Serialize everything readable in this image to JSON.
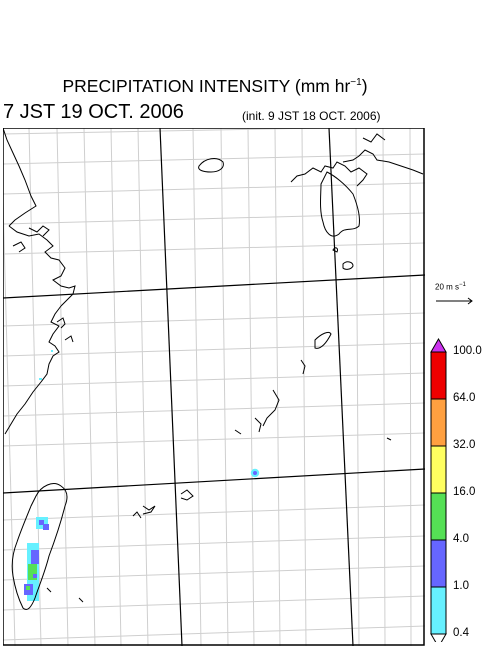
{
  "header": {
    "title": "PRECIPITATION INTENSITY (mm hr",
    "title_sup": "−1",
    "title_end": ")",
    "valid_time": "7 JST 19 OCT. 2006",
    "init_time": "(init. 9 JST 18 OCT. 2006)"
  },
  "vector_legend": {
    "label": "20 m s",
    "label_sup": "−1"
  },
  "colorbar": {
    "levels": [
      "100.0",
      "64.0",
      "32.0",
      "16.0",
      "4.0",
      "1.0",
      "0.4"
    ],
    "colors": [
      "#ee0000",
      "#ffa040",
      "#ffff60",
      "#55e055",
      "#6666ff",
      "#66f0ff"
    ],
    "over_color": "#cc33ee",
    "under_color": "#ffffff"
  }
}
